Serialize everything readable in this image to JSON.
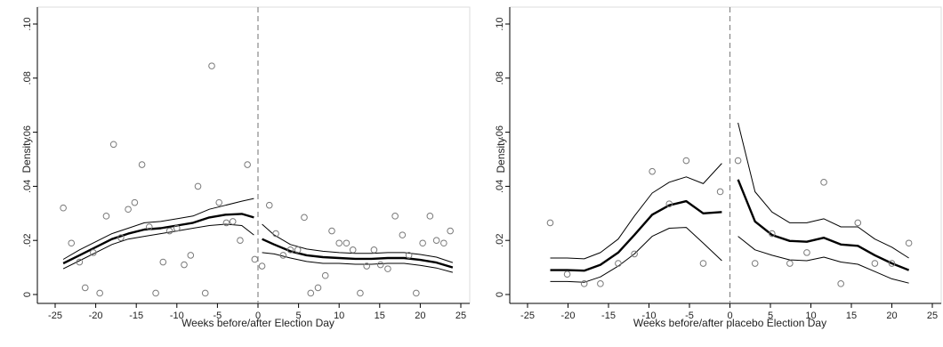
{
  "chart_data": [
    {
      "type": "scatter",
      "xlabel": "Weeks before/after Election Day",
      "ylabel": "Density",
      "xlim": [
        -25,
        25
      ],
      "ylim": [
        0,
        0.1
      ],
      "xticks": [
        -25,
        -20,
        -15,
        -10,
        -5,
        0,
        5,
        10,
        15,
        20,
        25
      ],
      "yticks": [
        0,
        0.02,
        0.04,
        0.06,
        0.08,
        0.1
      ],
      "ytick_labels": [
        "0",
        ".02",
        ".04",
        ".06",
        ".08",
        ".10"
      ],
      "cutoff_x": 0,
      "grid": false,
      "points": [
        {
          "x": -24,
          "y": 0.032
        },
        {
          "x": -23,
          "y": 0.019
        },
        {
          "x": -22,
          "y": 0.012
        },
        {
          "x": -21.3,
          "y": 0.0025
        },
        {
          "x": -20.3,
          "y": 0.0155
        },
        {
          "x": -19.5,
          "y": 0.0005
        },
        {
          "x": -18.7,
          "y": 0.029
        },
        {
          "x": -17.8,
          "y": 0.0555
        },
        {
          "x": -16.9,
          "y": 0.021
        },
        {
          "x": -16,
          "y": 0.0315
        },
        {
          "x": -15.2,
          "y": 0.034
        },
        {
          "x": -14.3,
          "y": 0.048
        },
        {
          "x": -13.4,
          "y": 0.025
        },
        {
          "x": -12.6,
          "y": 0.0005
        },
        {
          "x": -11.7,
          "y": 0.012
        },
        {
          "x": -10.9,
          "y": 0.0235
        },
        {
          "x": -10,
          "y": 0.0245
        },
        {
          "x": -9.1,
          "y": 0.011
        },
        {
          "x": -8.3,
          "y": 0.0145
        },
        {
          "x": -7.4,
          "y": 0.04
        },
        {
          "x": -6.5,
          "y": 0.0005
        },
        {
          "x": -5.7,
          "y": 0.0845
        },
        {
          "x": -4.8,
          "y": 0.034
        },
        {
          "x": -3.9,
          "y": 0.0265
        },
        {
          "x": -3.1,
          "y": 0.027
        },
        {
          "x": -2.2,
          "y": 0.02
        },
        {
          "x": -1.3,
          "y": 0.048
        },
        {
          "x": -0.4,
          "y": 0.013
        },
        {
          "x": 0.5,
          "y": 0.0105
        },
        {
          "x": 1.4,
          "y": 0.033
        },
        {
          "x": 2.2,
          "y": 0.0225
        },
        {
          "x": 3.1,
          "y": 0.0145
        },
        {
          "x": 4,
          "y": 0.0165
        },
        {
          "x": 4.9,
          "y": 0.0165
        },
        {
          "x": 5.7,
          "y": 0.0285
        },
        {
          "x": 6.5,
          "y": 0.0005
        },
        {
          "x": 7.4,
          "y": 0.0025
        },
        {
          "x": 8.3,
          "y": 0.007
        },
        {
          "x": 9.1,
          "y": 0.0235
        },
        {
          "x": 10,
          "y": 0.019
        },
        {
          "x": 10.9,
          "y": 0.019
        },
        {
          "x": 11.7,
          "y": 0.0165
        },
        {
          "x": 12.6,
          "y": 0.0005
        },
        {
          "x": 13.4,
          "y": 0.0105
        },
        {
          "x": 14.3,
          "y": 0.0165
        },
        {
          "x": 15.1,
          "y": 0.011
        },
        {
          "x": 16,
          "y": 0.0095
        },
        {
          "x": 16.9,
          "y": 0.029
        },
        {
          "x": 17.8,
          "y": 0.022
        },
        {
          "x": 18.6,
          "y": 0.0145
        },
        {
          "x": 19.5,
          "y": 0.0005
        },
        {
          "x": 20.3,
          "y": 0.019
        },
        {
          "x": 21.2,
          "y": 0.029
        },
        {
          "x": 22,
          "y": 0.02
        },
        {
          "x": 22.9,
          "y": 0.019
        },
        {
          "x": 23.7,
          "y": 0.0235
        }
      ],
      "fit_left": {
        "x": [
          -24,
          -22,
          -20,
          -18,
          -16,
          -14,
          -12,
          -10,
          -8,
          -6,
          -4,
          -2,
          -0.5
        ],
        "estimate": [
          0.0115,
          0.0145,
          0.0175,
          0.0205,
          0.0225,
          0.024,
          0.0245,
          0.0255,
          0.0265,
          0.0285,
          0.0295,
          0.0298,
          0.0285
        ],
        "upper": [
          0.013,
          0.0165,
          0.0195,
          0.0225,
          0.0245,
          0.0265,
          0.027,
          0.028,
          0.029,
          0.0315,
          0.033,
          0.0345,
          0.0355
        ],
        "lower": [
          0.0095,
          0.0125,
          0.0155,
          0.0185,
          0.0205,
          0.0215,
          0.0225,
          0.0235,
          0.0245,
          0.0255,
          0.026,
          0.0255,
          0.022
        ]
      },
      "fit_right": {
        "x": [
          0.5,
          2,
          4,
          6,
          8,
          10,
          12,
          14,
          16,
          18,
          20,
          22,
          24
        ],
        "estimate": [
          0.0205,
          0.0185,
          0.016,
          0.0145,
          0.0138,
          0.0135,
          0.0132,
          0.0132,
          0.0135,
          0.0135,
          0.0128,
          0.0118,
          0.01
        ],
        "upper": [
          0.026,
          0.022,
          0.0185,
          0.0168,
          0.016,
          0.0155,
          0.0152,
          0.0152,
          0.0155,
          0.0155,
          0.0148,
          0.0138,
          0.0118
        ],
        "lower": [
          0.0155,
          0.015,
          0.0135,
          0.0122,
          0.0115,
          0.0115,
          0.0112,
          0.0112,
          0.0115,
          0.0115,
          0.0108,
          0.0098,
          0.0082
        ]
      }
    },
    {
      "type": "scatter",
      "xlabel": "Weeks before/after placebo Election Day",
      "ylabel": "Density",
      "xlim": [
        -25,
        25
      ],
      "ylim": [
        0,
        0.1
      ],
      "xticks": [
        -25,
        -20,
        -15,
        -10,
        -5,
        0,
        5,
        10,
        15,
        20,
        25
      ],
      "yticks": [
        0,
        0.02,
        0.04,
        0.06,
        0.08,
        0.1
      ],
      "ytick_labels": [
        "0",
        ".02",
        ".04",
        ".06",
        ".08",
        ".10"
      ],
      "cutoff_x": 0,
      "grid": false,
      "points": [
        {
          "x": -22.2,
          "y": 0.0265
        },
        {
          "x": -20.1,
          "y": 0.0075
        },
        {
          "x": -18,
          "y": 0.004
        },
        {
          "x": -16,
          "y": 0.004
        },
        {
          "x": -13.8,
          "y": 0.0115
        },
        {
          "x": -11.8,
          "y": 0.015
        },
        {
          "x": -9.6,
          "y": 0.0455
        },
        {
          "x": -7.5,
          "y": 0.0335
        },
        {
          "x": -5.4,
          "y": 0.0495
        },
        {
          "x": -3.3,
          "y": 0.0115
        },
        {
          "x": -1.2,
          "y": 0.038
        },
        {
          "x": 1,
          "y": 0.0495
        },
        {
          "x": 3.1,
          "y": 0.0115
        },
        {
          "x": 5.2,
          "y": 0.0225
        },
        {
          "x": 7.4,
          "y": 0.0115
        },
        {
          "x": 9.5,
          "y": 0.0155
        },
        {
          "x": 11.6,
          "y": 0.0415
        },
        {
          "x": 13.7,
          "y": 0.004
        },
        {
          "x": 15.8,
          "y": 0.0265
        },
        {
          "x": 17.9,
          "y": 0.0115
        },
        {
          "x": 20,
          "y": 0.0115
        },
        {
          "x": 22.1,
          "y": 0.019
        }
      ],
      "fit_left": {
        "x": [
          -22.2,
          -20.1,
          -18,
          -16,
          -13.8,
          -11.8,
          -9.6,
          -7.5,
          -5.4,
          -3.3,
          -1
        ],
        "estimate": [
          0.009,
          0.009,
          0.0088,
          0.011,
          0.0155,
          0.022,
          0.0295,
          0.033,
          0.0345,
          0.03,
          0.0305
        ],
        "upper": [
          0.0135,
          0.0135,
          0.0132,
          0.0155,
          0.0205,
          0.029,
          0.0375,
          0.0415,
          0.0435,
          0.041,
          0.0485
        ],
        "lower": [
          0.0048,
          0.0048,
          0.0045,
          0.0065,
          0.0105,
          0.015,
          0.0215,
          0.0245,
          0.0248,
          0.019,
          0.0125
        ]
      },
      "fit_right": {
        "x": [
          1,
          3.1,
          5.2,
          7.4,
          9.5,
          11.6,
          13.7,
          15.8,
          17.9,
          20,
          22.1
        ],
        "estimate": [
          0.0425,
          0.027,
          0.022,
          0.0198,
          0.0195,
          0.021,
          0.0185,
          0.018,
          0.0145,
          0.0115,
          0.009
        ],
        "upper": [
          0.0635,
          0.038,
          0.0305,
          0.0265,
          0.0265,
          0.028,
          0.025,
          0.025,
          0.0205,
          0.0175,
          0.0135
        ],
        "lower": [
          0.0215,
          0.0165,
          0.0145,
          0.0128,
          0.0125,
          0.0138,
          0.012,
          0.0112,
          0.0085,
          0.0058,
          0.0042
        ]
      }
    }
  ]
}
